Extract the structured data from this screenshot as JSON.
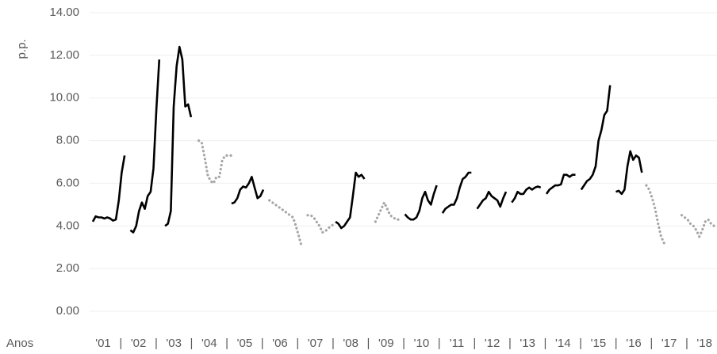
{
  "chart_data": {
    "type": "line",
    "y_label": "p.p.",
    "x_label": "Anos",
    "xlim": [
      2001,
      2019
    ],
    "xticks": [
      {
        "value": 2001,
        "label": "'01"
      },
      {
        "value": 2002,
        "label": "'02"
      },
      {
        "value": 2003,
        "label": "'03"
      },
      {
        "value": 2004,
        "label": "'04"
      },
      {
        "value": 2005,
        "label": "'05"
      },
      {
        "value": 2006,
        "label": "'06"
      },
      {
        "value": 2007,
        "label": "'07"
      },
      {
        "value": 2008,
        "label": "'08"
      },
      {
        "value": 2009,
        "label": "'09"
      },
      {
        "value": 2010,
        "label": "'10"
      },
      {
        "value": 2011,
        "label": "'11"
      },
      {
        "value": 2012,
        "label": "'12"
      },
      {
        "value": 2013,
        "label": "'13"
      },
      {
        "value": 2014,
        "label": "'14"
      },
      {
        "value": 2015,
        "label": "'15"
      },
      {
        "value": 2016,
        "label": "'16"
      },
      {
        "value": 2017,
        "label": "'17"
      },
      {
        "value": 2018,
        "label": "'18"
      }
    ],
    "xtick_separator": "|",
    "ylim": [
      0,
      14
    ],
    "yticks": [
      {
        "value": 0,
        "label": "0.00"
      },
      {
        "value": 2,
        "label": "2.00"
      },
      {
        "value": 4,
        "label": "4.00"
      },
      {
        "value": 6,
        "label": "6.00"
      },
      {
        "value": 8,
        "label": "8.00"
      },
      {
        "value": 10,
        "label": "10.00"
      },
      {
        "value": 12,
        "label": "12.00"
      },
      {
        "value": 14,
        "label": "14.00"
      }
    ],
    "grid": true,
    "series": [
      {
        "color": "#000000",
        "style": "solid",
        "values": [
          4.2,
          4.45,
          4.4,
          4.4,
          4.35,
          4.4,
          4.35,
          4.25,
          4.3,
          5.2,
          6.5,
          7.3,
          null,
          3.8,
          3.7,
          4.0,
          4.7,
          5.1,
          4.8,
          5.4,
          5.6,
          6.7,
          9.5,
          11.8,
          null,
          4.0,
          4.1,
          4.7,
          9.6,
          11.5,
          12.4,
          11.8,
          9.6,
          9.7,
          9.1,
          null,
          null,
          null,
          null,
          null,
          null,
          null,
          null,
          null,
          null,
          null,
          null,
          null,
          5.05,
          5.1,
          5.3,
          5.7,
          5.85,
          5.8,
          6.0,
          6.3,
          5.8,
          5.3,
          5.4,
          5.7,
          null,
          null,
          null,
          null,
          null,
          null,
          null,
          null,
          null,
          null,
          null,
          null,
          null,
          null,
          null,
          null,
          null,
          null,
          null,
          null,
          null,
          null,
          null,
          null,
          4.2,
          4.1,
          3.9,
          4.0,
          4.2,
          4.4,
          5.4,
          6.5,
          6.3,
          6.4,
          6.2,
          null,
          null,
          null,
          null,
          null,
          null,
          null,
          null,
          null,
          null,
          null,
          null,
          null,
          4.55,
          4.4,
          4.3,
          4.3,
          4.4,
          4.7,
          5.3,
          5.6,
          5.2,
          5.0,
          5.5,
          5.9,
          null,
          4.6,
          4.8,
          4.9,
          5.0,
          5.0,
          5.3,
          5.8,
          6.2,
          6.3,
          6.5,
          6.5,
          null,
          4.8,
          5.0,
          5.2,
          5.3,
          5.6,
          5.4,
          5.3,
          5.2,
          4.9,
          5.3,
          5.6,
          null,
          5.1,
          5.3,
          5.6,
          5.5,
          5.5,
          5.7,
          5.8,
          5.7,
          5.8,
          5.85,
          5.8,
          null,
          5.5,
          5.7,
          5.8,
          5.9,
          5.9,
          5.95,
          6.4,
          6.4,
          6.3,
          6.4,
          6.4,
          null,
          5.7,
          5.9,
          6.1,
          6.2,
          6.4,
          6.8,
          8.0,
          8.5,
          9.2,
          9.4,
          10.6,
          null,
          5.6,
          5.65,
          5.5,
          5.7,
          6.8,
          7.5,
          7.1,
          7.3,
          7.2,
          6.5,
          null,
          null,
          null,
          null,
          null,
          null,
          null,
          null,
          null,
          null,
          null,
          null,
          null,
          null,
          null,
          null,
          null,
          null,
          null,
          null,
          null,
          null,
          null,
          null,
          null
        ]
      },
      {
        "color": "#a6a6a6",
        "style": "dotted",
        "values": [
          null,
          null,
          null,
          null,
          null,
          null,
          null,
          null,
          null,
          null,
          null,
          null,
          null,
          null,
          null,
          null,
          null,
          null,
          null,
          null,
          null,
          null,
          null,
          null,
          null,
          null,
          null,
          null,
          null,
          null,
          null,
          null,
          null,
          null,
          null,
          null,
          8.0,
          7.9,
          7.2,
          6.4,
          6.1,
          6.0,
          6.3,
          6.3,
          7.1,
          7.3,
          7.3,
          7.3,
          null,
          null,
          null,
          null,
          null,
          null,
          null,
          null,
          null,
          null,
          null,
          null,
          5.2,
          5.1,
          5.0,
          4.9,
          4.8,
          4.7,
          4.6,
          4.5,
          4.4,
          4.0,
          3.5,
          3.0,
          null,
          4.5,
          4.5,
          4.4,
          4.2,
          4.0,
          3.7,
          3.75,
          3.9,
          4.0,
          4.1,
          null,
          null,
          null,
          null,
          null,
          null,
          null,
          null,
          null,
          null,
          null,
          null,
          null,
          4.2,
          4.5,
          4.8,
          5.1,
          4.8,
          4.5,
          4.4,
          4.3,
          4.3,
          null,
          null,
          null,
          null,
          null,
          null,
          null,
          null,
          null,
          null,
          null,
          null,
          null,
          null,
          null,
          null,
          null,
          null,
          null,
          null,
          null,
          null,
          null,
          null,
          null,
          null,
          null,
          null,
          null,
          null,
          null,
          null,
          null,
          null,
          null,
          null,
          null,
          null,
          null,
          null,
          null,
          null,
          null,
          null,
          null,
          null,
          null,
          null,
          null,
          null,
          null,
          null,
          null,
          null,
          null,
          null,
          null,
          null,
          null,
          null,
          null,
          null,
          null,
          null,
          null,
          null,
          null,
          null,
          null,
          null,
          null,
          null,
          null,
          null,
          null,
          null,
          null,
          null,
          null,
          null,
          null,
          null,
          null,
          5.9,
          5.7,
          5.3,
          4.8,
          4.1,
          3.5,
          3.2,
          3.1,
          null,
          null,
          null,
          null,
          4.5,
          4.4,
          4.3,
          4.1,
          4.0,
          3.8,
          3.5,
          3.8,
          4.2,
          4.3,
          4.1,
          4.0
        ]
      }
    ]
  }
}
